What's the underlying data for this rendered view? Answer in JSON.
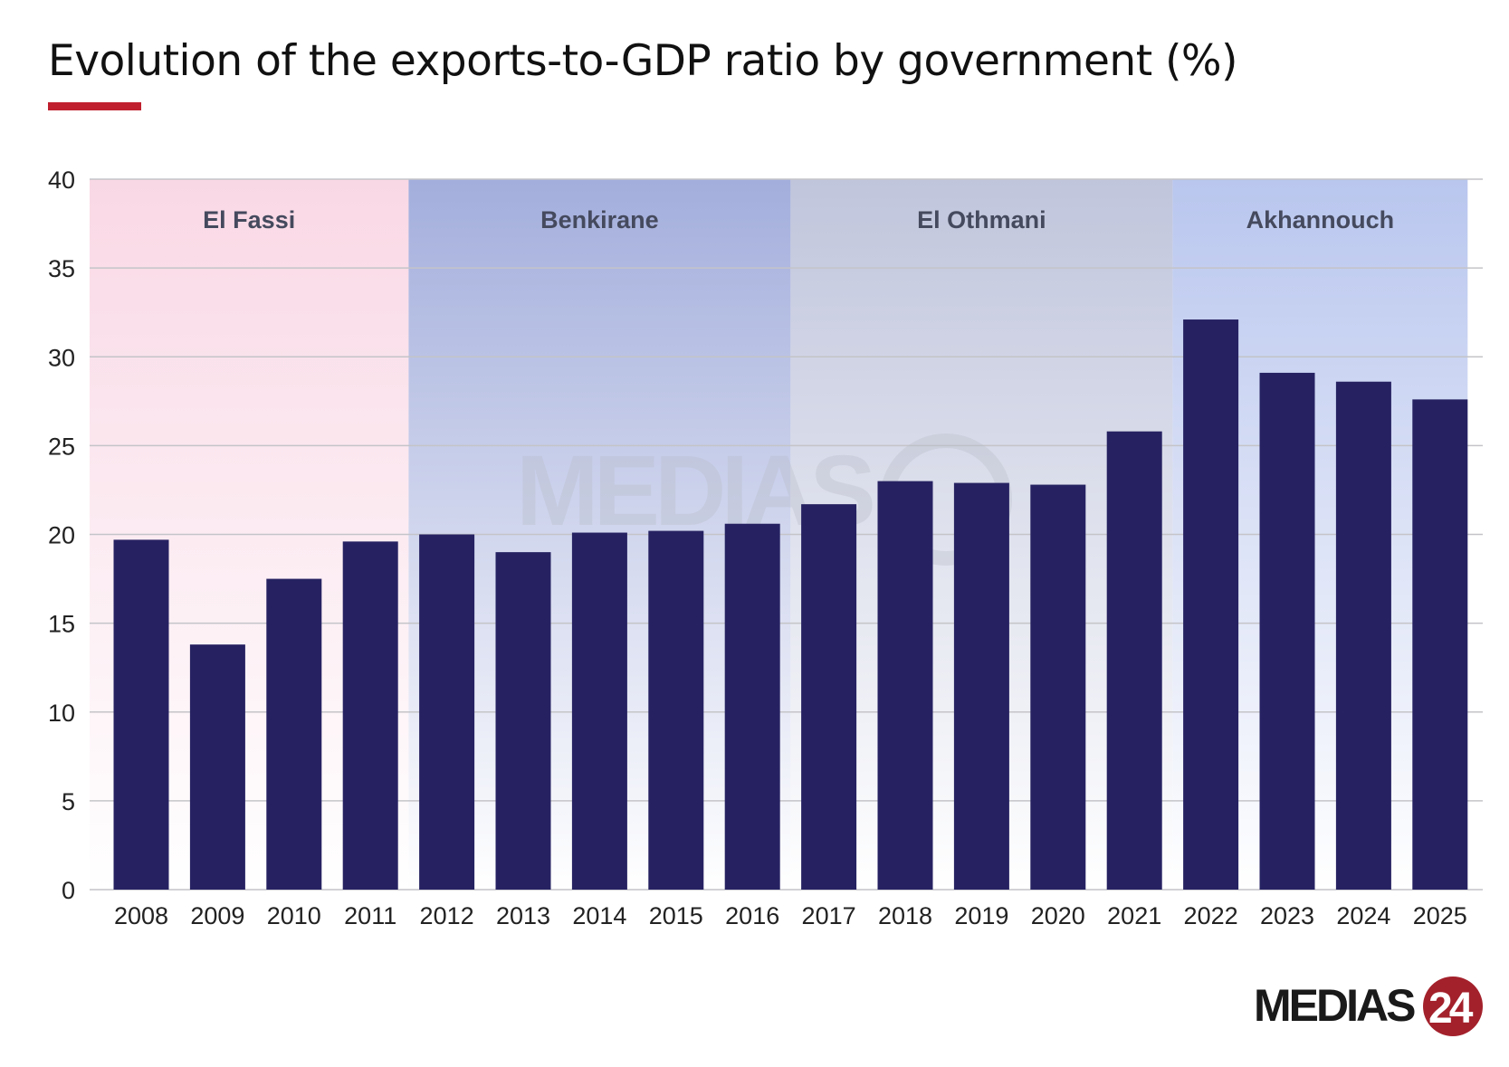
{
  "chart_data": {
    "type": "bar",
    "title": "Evolution of the exports-to-GDP ratio by government (%)",
    "xlabel": "",
    "ylabel": "",
    "ylim": [
      0,
      40
    ],
    "yticks": [
      0,
      5,
      10,
      15,
      20,
      25,
      30,
      35,
      40
    ],
    "grid": true,
    "categories": [
      "2008",
      "2009",
      "2010",
      "2011",
      "2012",
      "2013",
      "2014",
      "2015",
      "2016",
      "2017",
      "2018",
      "2019",
      "2020",
      "2021",
      "2022",
      "2023",
      "2024",
      "2025"
    ],
    "values": [
      19.7,
      13.8,
      17.5,
      19.6,
      20.0,
      19.0,
      20.1,
      20.2,
      20.6,
      21.7,
      23.0,
      22.9,
      22.8,
      25.8,
      32.1,
      29.1,
      28.6,
      27.6
    ],
    "bar_color": "#262262",
    "periods": [
      {
        "label": "El Fassi",
        "from": "2008",
        "to": "2011",
        "color_top": "#f9d8e5",
        "color_bottom": "#ffffff"
      },
      {
        "label": "Benkirane",
        "from": "2012",
        "to": "2016",
        "color_top": "#a3aedc",
        "color_bottom": "#ffffff"
      },
      {
        "label": "El Othmani",
        "from": "2017",
        "to": "2021",
        "color_top": "#c0c5dc",
        "color_bottom": "#ffffff"
      },
      {
        "label": "Akhannouch",
        "from": "2022",
        "to": "2025",
        "color_top": "#b9c6ee",
        "color_bottom": "#ffffff"
      }
    ]
  },
  "branding": {
    "logo": "MEDIAS24",
    "accent_color": "#c0202e"
  }
}
